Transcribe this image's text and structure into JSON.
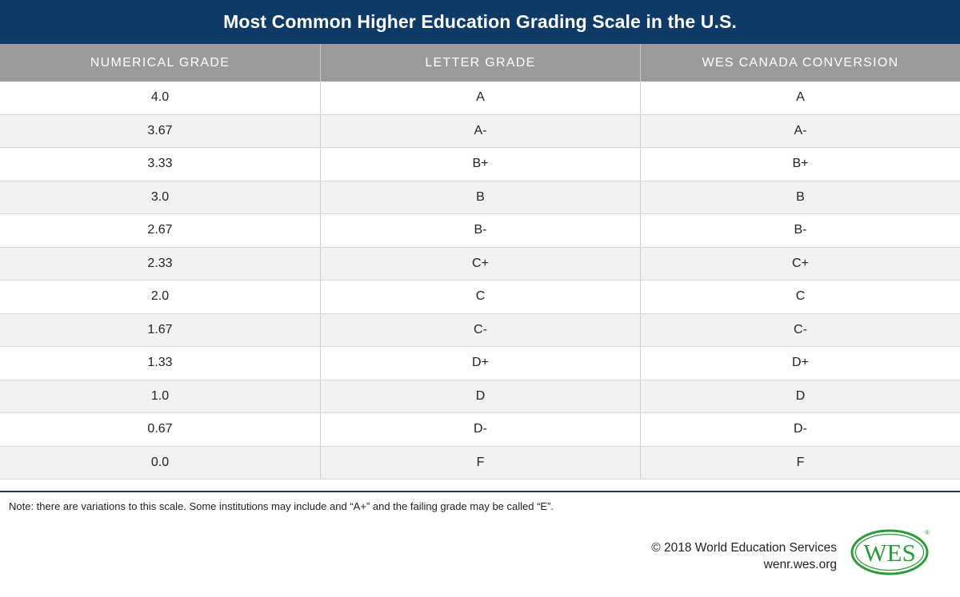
{
  "title": "Most Common Higher Education Grading Scale in the U.S.",
  "table": {
    "headers": [
      "NUMERICAL GRADE",
      "LETTER GRADE",
      "WES CANADA CONVERSION"
    ],
    "rows": [
      [
        "4.0",
        "A",
        "A"
      ],
      [
        "3.67",
        "A-",
        "A-"
      ],
      [
        "3.33",
        "B+",
        "B+"
      ],
      [
        "3.0",
        "B",
        "B"
      ],
      [
        "2.67",
        "B-",
        "B-"
      ],
      [
        "2.33",
        "C+",
        "C+"
      ],
      [
        "2.0",
        "C",
        "C"
      ],
      [
        "1.67",
        "C-",
        "C-"
      ],
      [
        "1.33",
        "D+",
        "D+"
      ],
      [
        "1.0",
        "D",
        "D"
      ],
      [
        "0.67",
        "D-",
        "D-"
      ],
      [
        "0.0",
        "F",
        "F"
      ]
    ]
  },
  "note": "Note: there are variations to this scale. Some institutions may include and “A+” and the failing grade may be called “E”.",
  "footer": {
    "copyright": "© 2018 World Education Services",
    "url": "wenr.wes.org"
  },
  "logo": {
    "text": "WES",
    "registered": "®",
    "color": "#2e9a3c"
  },
  "colors": {
    "title_bg": "#0e3a66",
    "header_bg": "#9b9b9b",
    "row_alt_bg": "#f2f2f2"
  }
}
